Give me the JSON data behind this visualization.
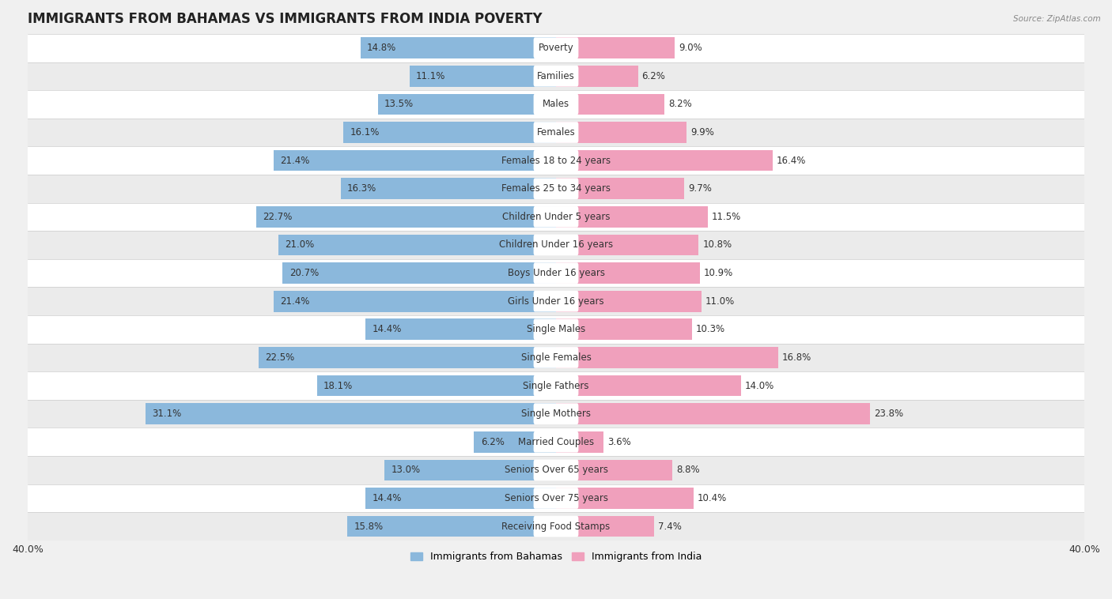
{
  "title": "IMMIGRANTS FROM BAHAMAS VS IMMIGRANTS FROM INDIA POVERTY",
  "source": "Source: ZipAtlas.com",
  "categories": [
    "Poverty",
    "Families",
    "Males",
    "Females",
    "Females 18 to 24 years",
    "Females 25 to 34 years",
    "Children Under 5 years",
    "Children Under 16 years",
    "Boys Under 16 years",
    "Girls Under 16 years",
    "Single Males",
    "Single Females",
    "Single Fathers",
    "Single Mothers",
    "Married Couples",
    "Seniors Over 65 years",
    "Seniors Over 75 years",
    "Receiving Food Stamps"
  ],
  "bahamas_values": [
    14.8,
    11.1,
    13.5,
    16.1,
    21.4,
    16.3,
    22.7,
    21.0,
    20.7,
    21.4,
    14.4,
    22.5,
    18.1,
    31.1,
    6.2,
    13.0,
    14.4,
    15.8
  ],
  "india_values": [
    9.0,
    6.2,
    8.2,
    9.9,
    16.4,
    9.7,
    11.5,
    10.8,
    10.9,
    11.0,
    10.3,
    16.8,
    14.0,
    23.8,
    3.6,
    8.8,
    10.4,
    7.4
  ],
  "bahamas_color": "#8BB8DC",
  "india_color": "#F0A0BC",
  "row_color_odd": "#f5f5f5",
  "row_color_even": "#e8e8e8",
  "background_color": "#f0f0f0",
  "xlim": 40.0,
  "legend_bahamas": "Immigrants from Bahamas",
  "legend_india": "Immigrants from India",
  "title_fontsize": 12,
  "label_fontsize": 8.5,
  "value_fontsize": 8.5
}
